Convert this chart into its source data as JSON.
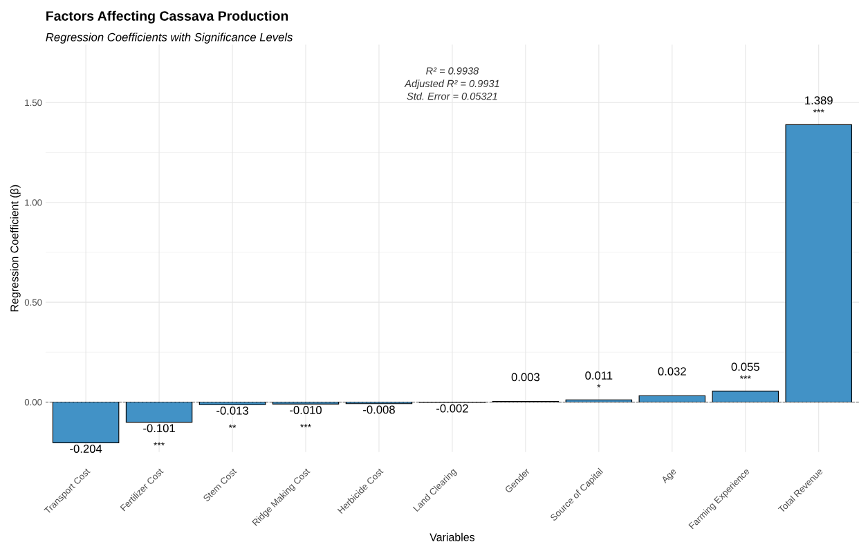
{
  "chart_data": {
    "type": "bar",
    "title": "Factors Affecting Cassava Production",
    "subtitle": "Regression Coefficients with Significance Levels",
    "xlabel": "Variables",
    "ylabel": "Regression Coefficient (β)",
    "categories": [
      "Transport Cost",
      "Fertilizer Cost",
      "Stem Cost",
      "Ridge Making Cost",
      "Herbicide Cost",
      "Land Clearing",
      "Gender",
      "Source of Capital",
      "Age",
      "Farming Experience",
      "Total Revenue"
    ],
    "values": [
      -0.204,
      -0.101,
      -0.013,
      -0.01,
      -0.008,
      -0.002,
      0.003,
      0.011,
      0.032,
      0.055,
      1.389
    ],
    "color": "#4292c6",
    "value_labels": [
      "-0.204",
      "-0.101",
      "-0.013",
      "-0.010",
      "-0.008",
      "-0.002",
      "0.003",
      "0.011",
      "0.032",
      "0.055",
      "1.389"
    ],
    "ylim": [
      -0.25,
      1.79
    ],
    "yticks": [
      {
        "value": 0,
        "label": "0.00"
      },
      {
        "value": 0.5,
        "label": "0.50"
      },
      {
        "value": 1.0,
        "label": "1.00"
      },
      {
        "value": 1.5,
        "label": "1.50"
      }
    ],
    "grid": true,
    "ref_lines": [
      {
        "axis": "y",
        "value": 0,
        "line_style": "dashed",
        "color": "#444444"
      }
    ],
    "annotations": [
      {
        "text": "***",
        "x": "Fertilizer Cost",
        "y": -0.101
      },
      {
        "text": "**",
        "x": "Stem Cost",
        "y": -0.013
      },
      {
        "text": "***",
        "x": "Ridge Making Cost",
        "y": -0.01
      },
      {
        "text": "*",
        "x": "Source of Capital",
        "y": 0.011
      },
      {
        "text": "***",
        "x": "Farming Experience",
        "y": 0.055
      },
      {
        "text": "***",
        "x": "Total Revenue",
        "y": 1.389
      },
      "R² = 0.9938\nAdjusted R² = 0.9931\nStd. Error = 0.05321"
    ]
  }
}
